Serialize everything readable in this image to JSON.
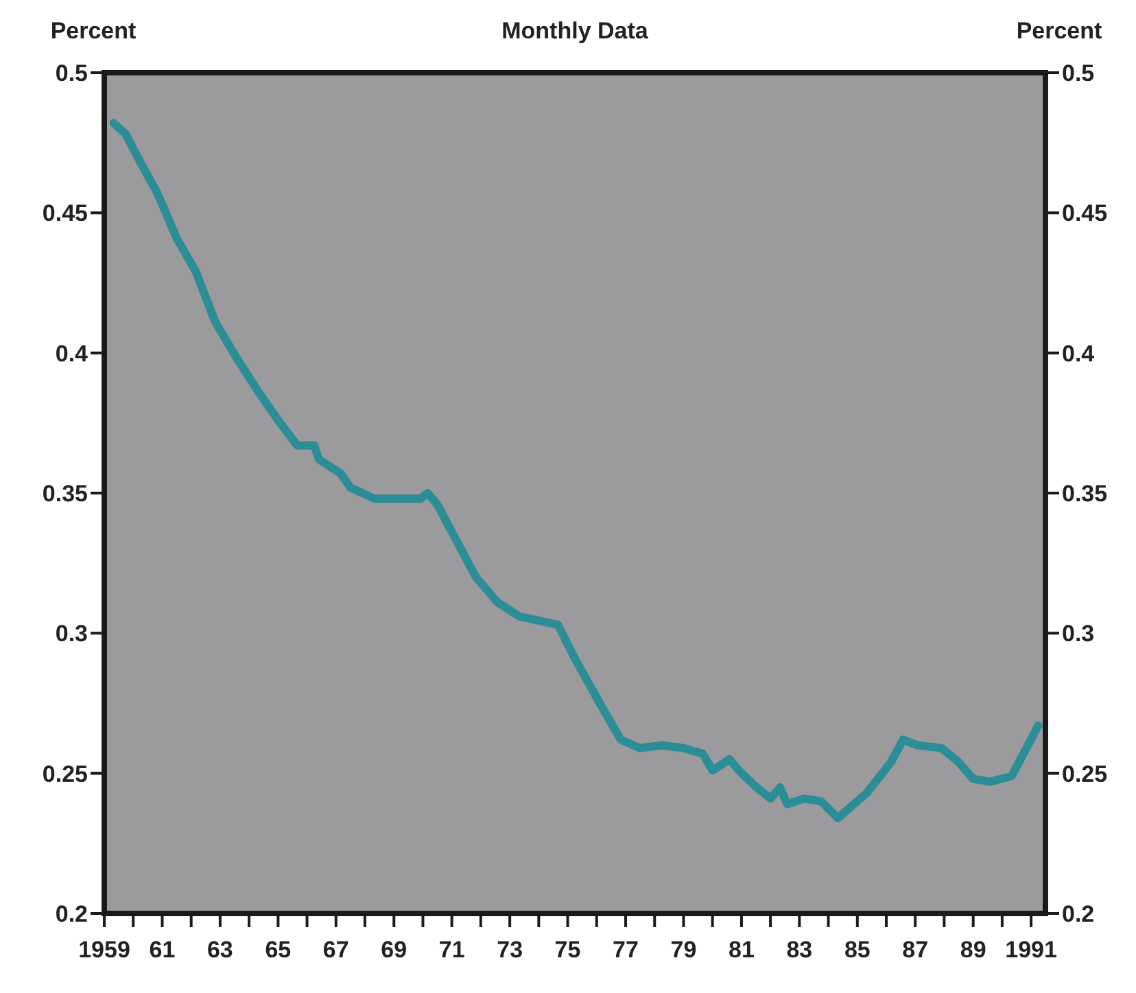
{
  "chart_data": {
    "type": "line",
    "title": "Monthly Data",
    "ylabel": "Percent",
    "y2label": "Percent",
    "xlim": [
      "1959-01",
      "1991-07"
    ],
    "xticks": [
      {
        "value": "1959",
        "label": "1959"
      },
      {
        "value": "1960",
        "label": null
      },
      {
        "value": "1961",
        "label": "61"
      },
      {
        "value": "1962",
        "label": null
      },
      {
        "value": "1963",
        "label": "63"
      },
      {
        "value": "1964",
        "label": null
      },
      {
        "value": "1965",
        "label": "65"
      },
      {
        "value": "1966",
        "label": null
      },
      {
        "value": "1967",
        "label": "67"
      },
      {
        "value": "1968",
        "label": null
      },
      {
        "value": "1969",
        "label": "69"
      },
      {
        "value": "1970",
        "label": null
      },
      {
        "value": "1971",
        "label": "71"
      },
      {
        "value": "1972",
        "label": null
      },
      {
        "value": "1973",
        "label": "73"
      },
      {
        "value": "1974",
        "label": null
      },
      {
        "value": "1975",
        "label": "75"
      },
      {
        "value": "1976",
        "label": null
      },
      {
        "value": "1977",
        "label": "77"
      },
      {
        "value": "1978",
        "label": null
      },
      {
        "value": "1979",
        "label": "79"
      },
      {
        "value": "1980",
        "label": null
      },
      {
        "value": "1981",
        "label": "81"
      },
      {
        "value": "1982",
        "label": null
      },
      {
        "value": "1983",
        "label": "83"
      },
      {
        "value": "1984",
        "label": null
      },
      {
        "value": "1985",
        "label": "85"
      },
      {
        "value": "1986",
        "label": null
      },
      {
        "value": "1987",
        "label": "87"
      },
      {
        "value": "1988",
        "label": null
      },
      {
        "value": "1989",
        "label": "89"
      },
      {
        "value": "1990",
        "label": null
      },
      {
        "value": "1991",
        "label": "1991"
      }
    ],
    "ylim": [
      0.2,
      0.5
    ],
    "yticks": [
      0.2,
      0.25,
      0.3,
      0.35,
      0.4,
      0.45,
      0.5
    ],
    "y2lim": [
      0.2,
      0.5
    ],
    "y2ticks": [
      0.2,
      0.25,
      0.3,
      0.35,
      0.4,
      0.45,
      0.5
    ],
    "grid": false,
    "marker": "none",
    "line_style": "solid",
    "x": [
      "1959-05",
      "1959-10",
      "1960-04",
      "1960-11",
      "1961-07",
      "1962-03",
      "1962-11",
      "1963-08",
      "1964-05",
      "1965-01",
      "1965-09",
      "1966-04",
      "1966-06",
      "1967-03",
      "1967-07",
      "1968-05",
      "1969-04",
      "1969-12",
      "1970-03",
      "1970-07",
      "1971-03",
      "1971-11",
      "1972-08",
      "1973-05",
      "1974-09",
      "1975-04",
      "1976-03",
      "1976-11",
      "1977-07",
      "1978-04",
      "1979-01",
      "1979-09",
      "1980-01",
      "1980-08",
      "1980-12",
      "1981-06",
      "1982-01",
      "1982-05",
      "1982-08",
      "1983-03",
      "1983-10",
      "1984-05",
      "1985-05",
      "1986-03",
      "1986-08",
      "1987-02",
      "1987-12",
      "1988-07",
      "1989-01",
      "1989-08",
      "1990-05",
      "1991-04"
    ],
    "series": [
      {
        "color": "#2b8d96",
        "values": [
          0.482,
          0.478,
          0.468,
          0.457,
          0.441,
          0.429,
          0.411,
          0.398,
          0.386,
          0.376,
          0.367,
          0.367,
          0.362,
          0.357,
          0.352,
          0.348,
          0.348,
          0.348,
          0.35,
          0.346,
          0.333,
          0.32,
          0.311,
          0.306,
          0.303,
          0.291,
          0.274,
          0.262,
          0.259,
          0.26,
          0.259,
          0.257,
          0.251,
          0.255,
          0.251,
          0.246,
          0.241,
          0.245,
          0.239,
          0.241,
          0.24,
          0.234,
          0.243,
          0.254,
          0.262,
          0.26,
          0.259,
          0.254,
          0.248,
          0.247,
          0.249,
          0.267
        ]
      }
    ]
  }
}
